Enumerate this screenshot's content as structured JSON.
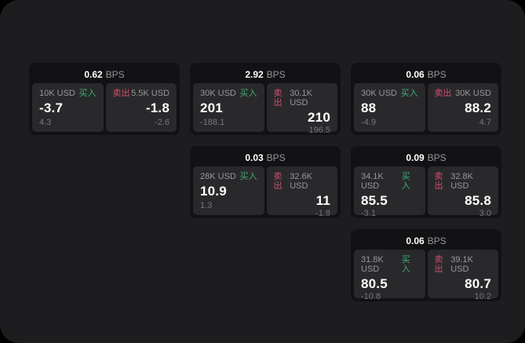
{
  "labels": {
    "bps_suffix": "BPS",
    "buy": "买入",
    "sell": "卖出"
  },
  "colors": {
    "outer_bg": "#000000",
    "panel_bg": "#1d1d1f",
    "card_bg": "#121214",
    "tile_bg": "#29292c",
    "value_text": "#ffffff",
    "muted_text": "#97979c",
    "faint_text": "#76767c",
    "buy": "#3fae72",
    "sell": "#cf4f6b"
  },
  "columns": [
    [
      {
        "bps": "0.62",
        "buy": {
          "amount": "10K USD",
          "value": "-3.7",
          "sub": "4.3"
        },
        "sell": {
          "amount": "5.5K USD",
          "value": "-1.8",
          "sub": "-2.6"
        }
      }
    ],
    [
      {
        "bps": "2.92",
        "buy": {
          "amount": "30K USD",
          "value": "201",
          "sub": "-188.1"
        },
        "sell": {
          "amount": "30.1K USD",
          "value": "210",
          "sub": "196.5"
        }
      },
      {
        "bps": "0.03",
        "buy": {
          "amount": "28K USD",
          "value": "10.9",
          "sub": "1.3"
        },
        "sell": {
          "amount": "32.6K USD",
          "value": "11",
          "sub": "-1.8"
        }
      }
    ],
    [
      {
        "bps": "0.06",
        "buy": {
          "amount": "30K USD",
          "value": "88",
          "sub": "-4.9"
        },
        "sell": {
          "amount": "30K USD",
          "value": "88.2",
          "sub": "4.7"
        }
      },
      {
        "bps": "0.09",
        "buy": {
          "amount": "34.1K USD",
          "value": "85.5",
          "sub": "-3.1"
        },
        "sell": {
          "amount": "32.8K USD",
          "value": "85.8",
          "sub": "3.0"
        }
      },
      {
        "bps": "0.06",
        "buy": {
          "amount": "31.8K USD",
          "value": "80.5",
          "sub": "-10.8"
        },
        "sell": {
          "amount": "39.1K USD",
          "value": "80.7",
          "sub": "10.2"
        }
      }
    ]
  ]
}
